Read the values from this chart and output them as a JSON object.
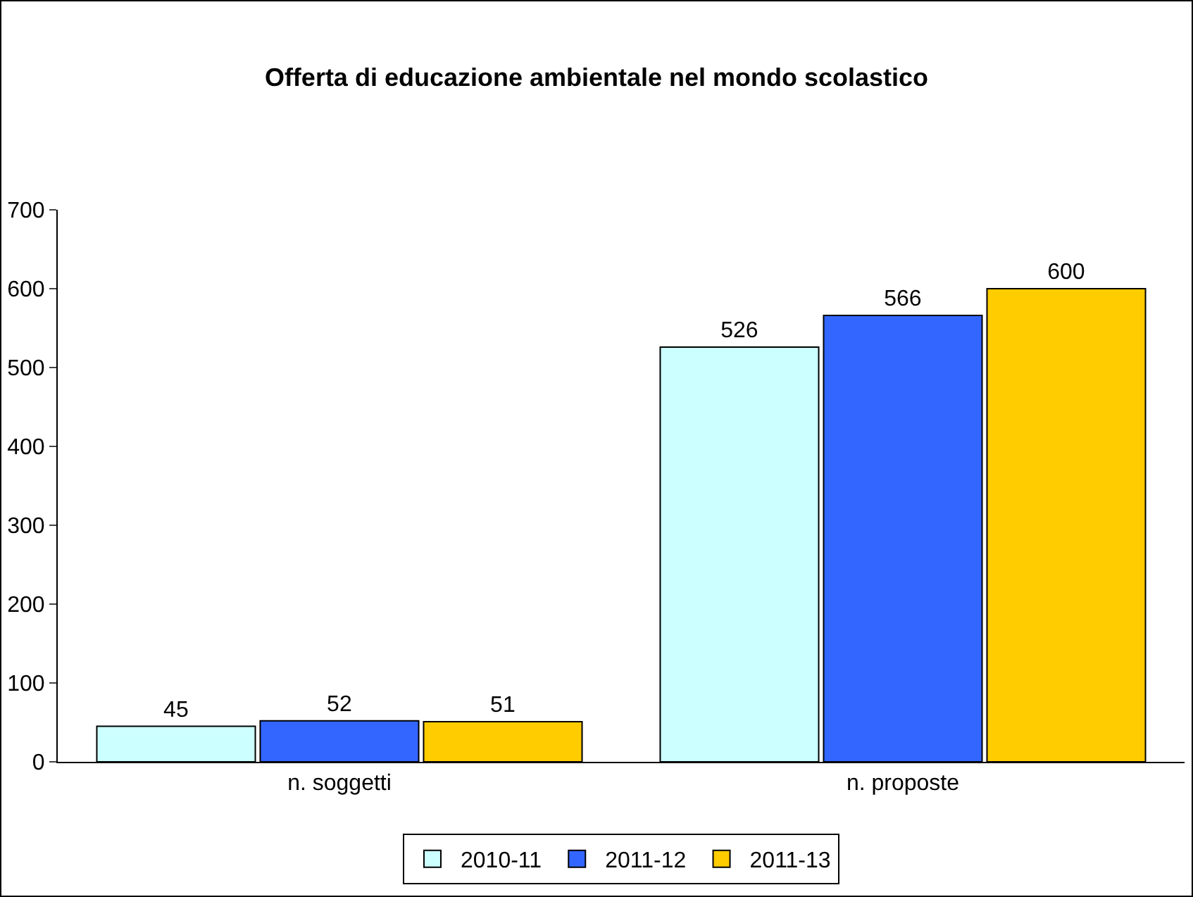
{
  "chart_data": {
    "type": "bar",
    "title": "Offerta di educazione ambientale nel mondo scolastico",
    "categories": [
      "n. soggetti",
      "n. proposte"
    ],
    "series": [
      {
        "name": "2010-11",
        "color": "#ccffff",
        "values": [
          45,
          526
        ]
      },
      {
        "name": "2011-12",
        "color": "#3366ff",
        "values": [
          52,
          566
        ]
      },
      {
        "name": "2011-13",
        "color": "#ffcc00",
        "values": [
          51,
          600
        ]
      }
    ],
    "ylim": [
      0,
      700
    ],
    "yticks": [
      0,
      100,
      200,
      300,
      400,
      500,
      600,
      700
    ],
    "grid": false,
    "legend": "bottom",
    "data_labels": true
  }
}
